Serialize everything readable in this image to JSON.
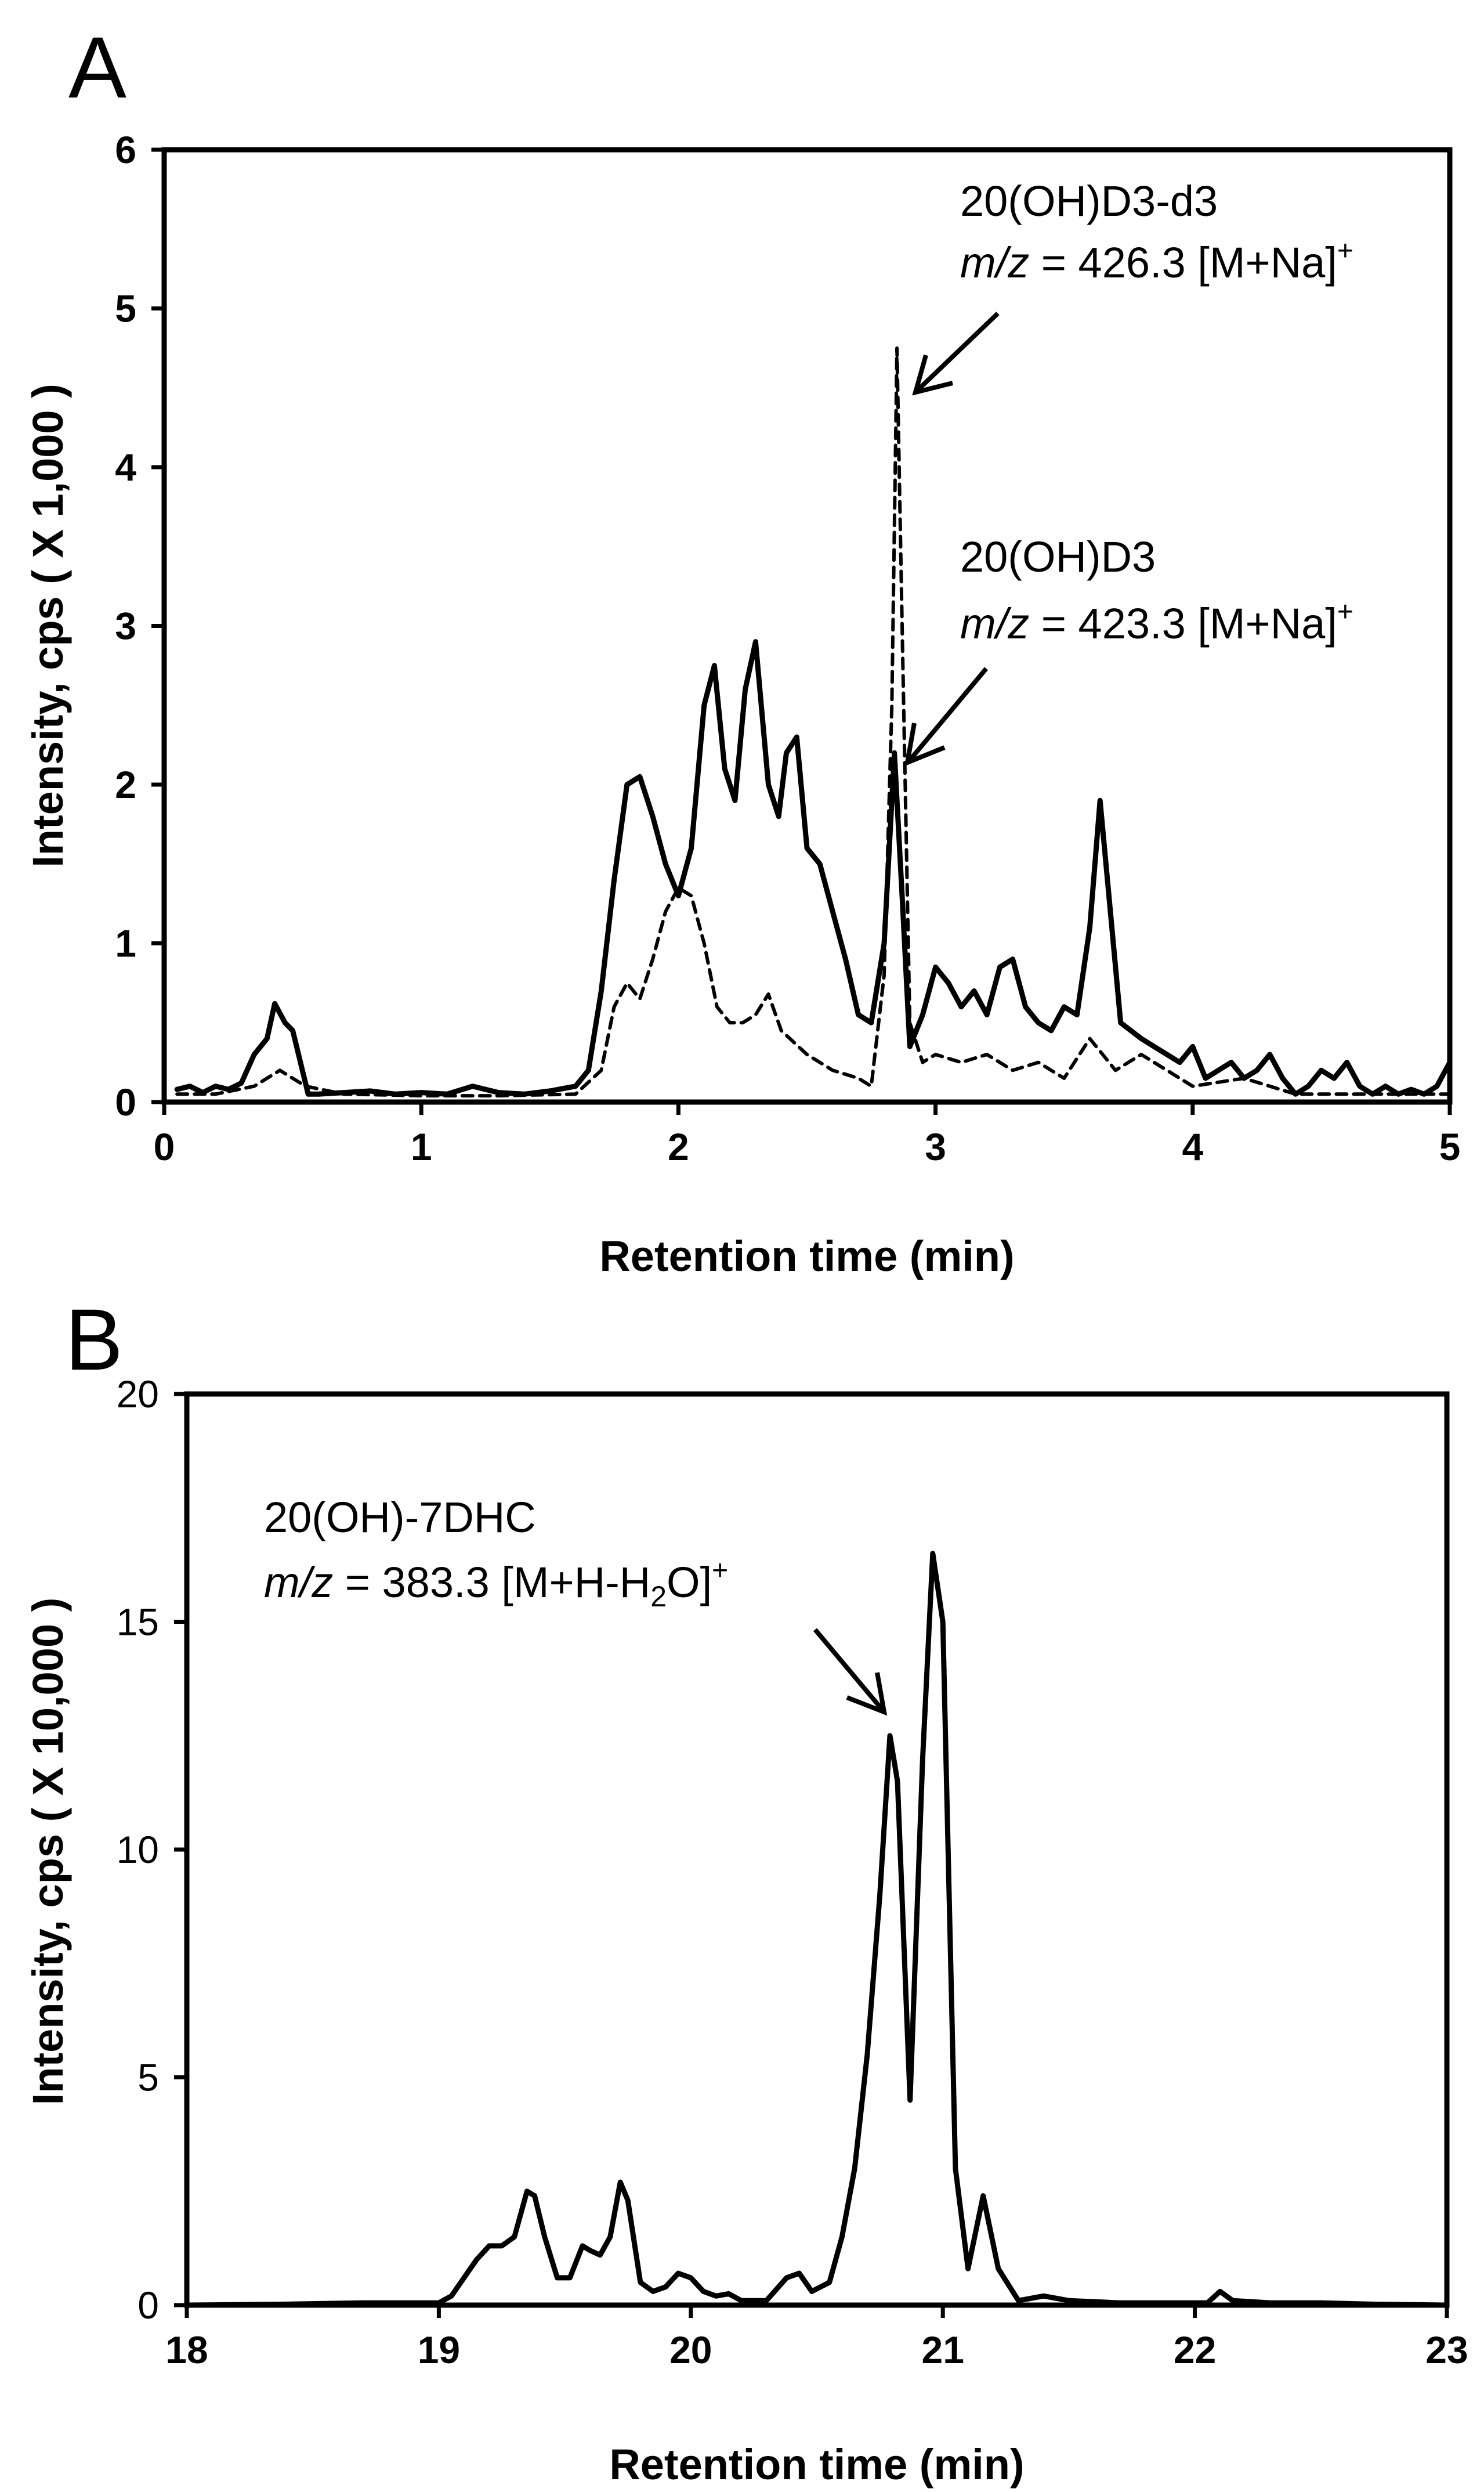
{
  "panels": {
    "a_letter": "A",
    "b_letter": "B"
  },
  "chart_data": [
    {
      "type": "line",
      "panel": "A",
      "xlabel": "Retention time (min)",
      "ylabel": "Intensity, cps ( X 1,000 )",
      "xlim": [
        0,
        5
      ],
      "ylim": [
        0,
        6
      ],
      "xticks": [
        0,
        1,
        2,
        3,
        4,
        5
      ],
      "yticks": [
        0,
        1,
        2,
        3,
        4,
        5,
        6
      ],
      "xtick_labels": [
        "0",
        "1",
        "2",
        "3",
        "4",
        "5"
      ],
      "ytick_labels": [
        "0",
        "1",
        "2",
        "3",
        "4",
        "5",
        "6"
      ],
      "series": [
        {
          "name": "20(OH)D3 m/z 423.3 [M+Na]+",
          "style": "solid",
          "x": [
            0.05,
            0.1,
            0.15,
            0.2,
            0.25,
            0.3,
            0.35,
            0.4,
            0.43,
            0.47,
            0.5,
            0.53,
            0.56,
            0.6,
            0.7,
            0.8,
            0.9,
            1.0,
            1.1,
            1.2,
            1.3,
            1.4,
            1.5,
            1.6,
            1.65,
            1.7,
            1.75,
            1.8,
            1.85,
            1.9,
            1.95,
            2.0,
            2.05,
            2.1,
            2.14,
            2.18,
            2.22,
            2.26,
            2.3,
            2.35,
            2.39,
            2.42,
            2.46,
            2.5,
            2.55,
            2.6,
            2.65,
            2.7,
            2.75,
            2.8,
            2.84,
            2.87,
            2.9,
            2.95,
            3.0,
            3.05,
            3.1,
            3.15,
            3.2,
            3.25,
            3.3,
            3.35,
            3.4,
            3.45,
            3.5,
            3.55,
            3.6,
            3.64,
            3.68,
            3.72,
            3.76,
            3.8,
            3.85,
            3.9,
            3.95,
            4.0,
            4.05,
            4.1,
            4.15,
            4.2,
            4.25,
            4.3,
            4.35,
            4.4,
            4.45,
            4.5,
            4.55,
            4.6,
            4.65,
            4.7,
            4.75,
            4.8,
            4.85,
            4.9,
            4.95,
            5.0
          ],
          "y": [
            0.08,
            0.1,
            0.06,
            0.1,
            0.08,
            0.12,
            0.3,
            0.4,
            0.62,
            0.5,
            0.45,
            0.25,
            0.05,
            0.05,
            0.06,
            0.07,
            0.05,
            0.06,
            0.05,
            0.1,
            0.06,
            0.05,
            0.07,
            0.1,
            0.2,
            0.7,
            1.4,
            2.0,
            2.05,
            1.8,
            1.5,
            1.3,
            1.6,
            2.5,
            2.75,
            2.1,
            1.9,
            2.6,
            2.9,
            2.0,
            1.8,
            2.2,
            2.3,
            1.6,
            1.5,
            1.2,
            0.9,
            0.55,
            0.5,
            1.0,
            2.2,
            1.3,
            0.35,
            0.55,
            0.85,
            0.75,
            0.6,
            0.7,
            0.55,
            0.85,
            0.9,
            0.6,
            0.5,
            0.45,
            0.6,
            0.55,
            1.1,
            1.9,
            1.2,
            0.5,
            0.45,
            0.4,
            0.35,
            0.3,
            0.25,
            0.35,
            0.15,
            0.2,
            0.25,
            0.15,
            0.2,
            0.3,
            0.15,
            0.05,
            0.1,
            0.2,
            0.15,
            0.25,
            0.1,
            0.05,
            0.1,
            0.05,
            0.08,
            0.05,
            0.1,
            0.25
          ]
        },
        {
          "name": "20(OH)D3-d3 m/z 426.3 [M+Na]+",
          "style": "dashed",
          "x": [
            0.05,
            0.2,
            0.35,
            0.45,
            0.55,
            0.7,
            1.0,
            1.3,
            1.6,
            1.7,
            1.75,
            1.8,
            1.85,
            1.9,
            1.95,
            2.0,
            2.05,
            2.1,
            2.15,
            2.2,
            2.25,
            2.3,
            2.35,
            2.4,
            2.5,
            2.6,
            2.7,
            2.75,
            2.8,
            2.83,
            2.85,
            2.87,
            2.9,
            2.95,
            3.0,
            3.1,
            3.2,
            3.3,
            3.4,
            3.5,
            3.6,
            3.7,
            3.8,
            3.9,
            4.0,
            4.2,
            4.4,
            4.6,
            4.8,
            5.0
          ],
          "y": [
            0.05,
            0.05,
            0.1,
            0.2,
            0.1,
            0.05,
            0.04,
            0.04,
            0.05,
            0.2,
            0.6,
            0.75,
            0.65,
            0.9,
            1.2,
            1.35,
            1.3,
            1.0,
            0.6,
            0.5,
            0.5,
            0.55,
            0.68,
            0.45,
            0.3,
            0.2,
            0.15,
            0.1,
            0.8,
            2.5,
            4.75,
            3.0,
            0.5,
            0.25,
            0.3,
            0.25,
            0.3,
            0.2,
            0.25,
            0.15,
            0.4,
            0.2,
            0.3,
            0.2,
            0.1,
            0.15,
            0.05,
            0.05,
            0.05,
            0.05
          ]
        }
      ],
      "annotations": [
        {
          "line1": "20(OH)D3-d3",
          "mz_label": "m/z",
          "mz_value": " = 426.3 [M+Na]",
          "charge": "+",
          "points_to": [
            2.85,
            4.4
          ]
        },
        {
          "line1": "20(OH)D3",
          "mz_label": "m/z",
          "mz_value": " = 423.3 [M+Na]",
          "charge": "+",
          "points_to": [
            2.87,
            2.1
          ]
        }
      ]
    },
    {
      "type": "line",
      "panel": "B",
      "xlabel": "Retention time (min)",
      "ylabel": "Intensity, cps ( X 10,000 )",
      "xlim": [
        18,
        23
      ],
      "ylim": [
        0,
        20
      ],
      "xticks": [
        18,
        19,
        20,
        21,
        22,
        23
      ],
      "yticks": [
        0,
        5,
        10,
        15,
        20
      ],
      "xtick_labels": [
        "18",
        "19",
        "20",
        "21",
        "22",
        "23"
      ],
      "ytick_labels": [
        "0",
        "5",
        "10",
        "15",
        "20"
      ],
      "series": [
        {
          "name": "20(OH)-7DHC m/z 383.3 [M+H-H2O]+",
          "style": "solid",
          "x": [
            18.0,
            18.4,
            18.7,
            18.9,
            19.0,
            19.05,
            19.1,
            19.15,
            19.2,
            19.25,
            19.3,
            19.35,
            19.38,
            19.42,
            19.47,
            19.52,
            19.57,
            19.6,
            19.64,
            19.68,
            19.72,
            19.75,
            19.8,
            19.85,
            19.9,
            19.95,
            20.0,
            20.05,
            20.1,
            20.15,
            20.2,
            20.3,
            20.38,
            20.43,
            20.48,
            20.55,
            20.6,
            20.65,
            20.7,
            20.75,
            20.79,
            20.82,
            20.87,
            20.92,
            20.96,
            21.0,
            21.05,
            21.1,
            21.16,
            21.22,
            21.3,
            21.4,
            21.5,
            21.7,
            21.9,
            22.05,
            22.1,
            22.15,
            22.3,
            22.5,
            22.7,
            23.0
          ],
          "y": [
            0.0,
            0.02,
            0.05,
            0.05,
            0.05,
            0.2,
            0.6,
            1.0,
            1.3,
            1.3,
            1.5,
            2.5,
            2.4,
            1.5,
            0.6,
            0.6,
            1.3,
            1.2,
            1.1,
            1.5,
            2.7,
            2.3,
            0.5,
            0.3,
            0.4,
            0.7,
            0.6,
            0.3,
            0.2,
            0.25,
            0.1,
            0.1,
            0.6,
            0.7,
            0.3,
            0.5,
            1.5,
            3.0,
            5.5,
            9.0,
            12.5,
            11.5,
            4.5,
            12.0,
            16.5,
            15.0,
            3.0,
            0.8,
            2.4,
            0.8,
            0.1,
            0.2,
            0.1,
            0.05,
            0.05,
            0.05,
            0.3,
            0.1,
            0.05,
            0.05,
            0.02,
            0.0
          ]
        }
      ],
      "annotations": [
        {
          "line1": "20(OH)-7DHC",
          "mz_label": "m/z",
          "mz_value": " = 383.3 [M+H-H",
          "sub": "2",
          "mz_tail": "O]",
          "charge": "+",
          "points_to": [
            20.78,
            12.8
          ]
        }
      ]
    }
  ]
}
